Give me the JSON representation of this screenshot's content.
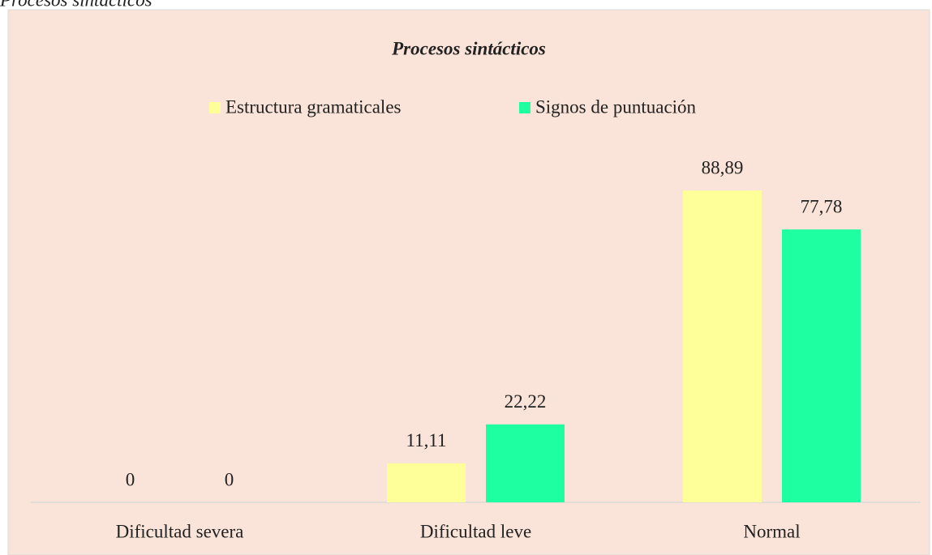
{
  "caption": "Procesos sintácticos",
  "chart_data": {
    "type": "bar",
    "title": "Procesos sintácticos",
    "categories": [
      "Dificultad severa",
      "Dificultad leve",
      "Normal"
    ],
    "series": [
      {
        "name": "Estructura gramaticales",
        "color": "#ffff99",
        "values": [
          0,
          11.11,
          88.89
        ],
        "value_labels": [
          "0",
          "11,11",
          "88,89"
        ]
      },
      {
        "name": "Signos de puntuación",
        "color": "#1dffa0",
        "values": [
          0,
          22.22,
          77.78
        ],
        "value_labels": [
          "0",
          "22,22",
          "77,78"
        ]
      }
    ],
    "ylim": [
      0,
      100
    ],
    "legend": "top",
    "background": "#fae3d8"
  }
}
